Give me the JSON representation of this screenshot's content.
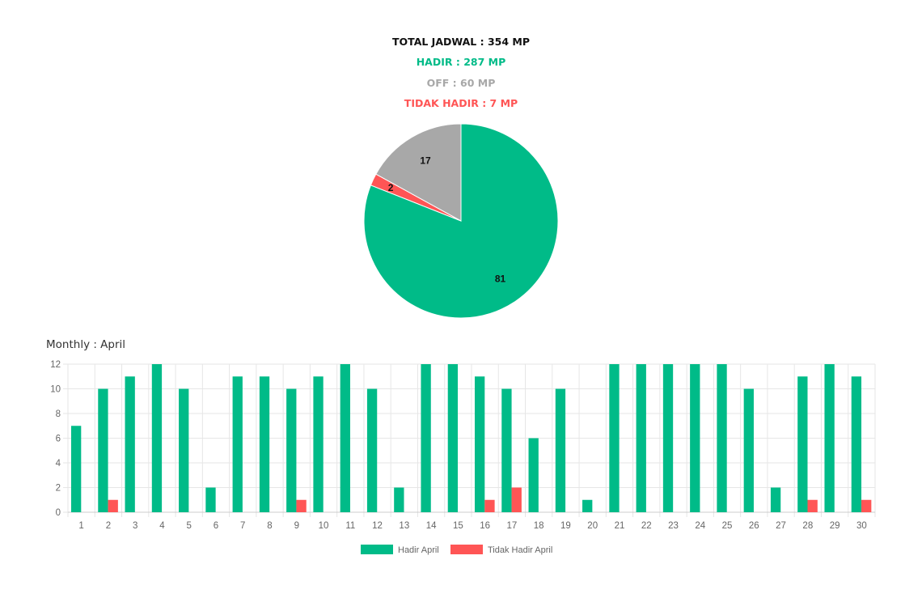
{
  "summary": {
    "total": "TOTAL JADWAL : 354 MP",
    "hadir": "HADIR : 287 MP",
    "off": "OFF : 60 MP",
    "tidak": "TIDAK HADIR : 7 MP"
  },
  "colors": {
    "hadir": "#00bb88",
    "tidak": "#ff5555",
    "off": "#a8a8a8"
  },
  "monthly_title": "Monthly : April",
  "chart_data": [
    {
      "type": "pie",
      "labels": [
        "Hadir",
        "Tidak Hadir",
        "Off"
      ],
      "values": [
        81,
        2,
        17
      ],
      "colors": [
        "#00bb88",
        "#ff5555",
        "#a8a8a8"
      ]
    },
    {
      "type": "bar",
      "categories": [
        "1",
        "2",
        "3",
        "4",
        "5",
        "6",
        "7",
        "8",
        "9",
        "10",
        "11",
        "12",
        "13",
        "14",
        "15",
        "16",
        "17",
        "18",
        "19",
        "20",
        "21",
        "22",
        "23",
        "24",
        "25",
        "26",
        "27",
        "28",
        "29",
        "30"
      ],
      "series": [
        {
          "name": "Hadir April",
          "color": "#00bb88",
          "values": [
            7,
            10,
            11,
            12,
            10,
            2,
            11,
            11,
            10,
            11,
            12,
            10,
            2,
            12,
            12,
            11,
            10,
            6,
            10,
            1,
            12,
            12,
            12,
            12,
            12,
            10,
            2,
            11,
            12,
            11
          ]
        },
        {
          "name": "Tidak Hadir April",
          "color": "#ff5555",
          "values": [
            0,
            1,
            0,
            0,
            0,
            0,
            0,
            0,
            1,
            0,
            0,
            0,
            0,
            0,
            0,
            1,
            2,
            0,
            0,
            0,
            0,
            0,
            0,
            0,
            0,
            0,
            0,
            1,
            0,
            1
          ]
        }
      ],
      "ylim": [
        0,
        12
      ],
      "yticks": [
        0,
        2,
        4,
        6,
        8,
        10,
        12
      ],
      "grid": true,
      "legend": "bottom"
    }
  ]
}
